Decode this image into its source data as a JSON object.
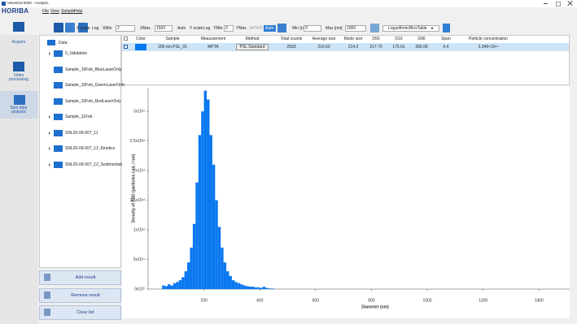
{
  "window": {
    "title": "ViewSizer3000 - Analysis"
  },
  "logo": "HORIBA",
  "menu": [
    "File",
    "View",
    "Sample",
    "Help"
  ],
  "toolbar": {
    "x_scale": "X scale",
    "x_log": "Log",
    "xmin_label": "XMin",
    "xmin": "2",
    "xmax_label": "XMax",
    "xmax": "1500",
    "x_auto": "Auto",
    "y_scale": "Y scale",
    "y_log": "Log",
    "ymin_label": "YMin",
    "ymin": "0",
    "ymax_label": "YMax",
    "ymax": "347543",
    "y_auto": "Auto",
    "min_label": "Min [nm]",
    "min": "0",
    "max_label": "Max [nm]",
    "max": "1000",
    "bins_table": "LogarithmicBinsTable"
  },
  "nav": [
    "Acquire",
    "Video processing",
    "Size data analysis"
  ],
  "tree": {
    "root": "Data",
    "items": [
      "0_Validation",
      "Sample_10Feb_BlueLaserOnly",
      "Sample_10Feb_GreenLaserOnly",
      "Sample_10Feb_RedLaserOnly",
      "Sample_11Feb",
      "SNL20-09-007_11",
      "SNL20-09-007_12_Kinetics",
      "SNL20-09-007_12_Sedimentation"
    ]
  },
  "buttons": [
    "Add result",
    "Remove result",
    "Clear list"
  ],
  "table": {
    "headers": [
      "Color",
      "Sample",
      "Measurement",
      "Method",
      "Total counts",
      "Average size",
      "Mode size",
      "D50",
      "D10",
      "D90",
      "Span",
      "Particle concentration"
    ],
    "rows": [
      [
        "200 nm PSL_01",
        "MPTA",
        "PSL Standard",
        "2933",
        "219.63",
        "214.3",
        "217.79",
        "175.61",
        "282.09",
        "0.4",
        "2.346×10¹⁴"
      ]
    ]
  },
  "chart_data": {
    "type": "histogram",
    "x_label": "Diameter (nm)",
    "y_label": "Density of PSD (particles / mL / nm)",
    "color": "#0a78f0",
    "bins": [
      50,
      60,
      70,
      80,
      90,
      100,
      110,
      120,
      130,
      140,
      150,
      160,
      170,
      180,
      190,
      200,
      210,
      220,
      230,
      240,
      250,
      260,
      270,
      280,
      290,
      300,
      310,
      320,
      330,
      340,
      350,
      360,
      370,
      380,
      390,
      400,
      410,
      420,
      430,
      440,
      450
    ],
    "values": [
      60000000000.0,
      50000000000.0,
      80000000000.0,
      60000000000.0,
      100000000000.0,
      120000000000.0,
      150000000000.0,
      200000000000.0,
      300000000000.0,
      450000000000.0,
      700000000000.0,
      1100000000000.0,
      1800000000000.0,
      2600000000000.0,
      3000000000000.0,
      3350000000000.0,
      3200000000000.0,
      2600000000000.0,
      2100000000000.0,
      1500000000000.0,
      1050000000000.0,
      700000000000.0,
      450000000000.0,
      300000000000.0,
      220000000000.0,
      150000000000.0,
      120000000000.0,
      100000000000.0,
      80000000000.0,
      60000000000.0,
      50000000000.0,
      40000000000.0,
      40000000000.0,
      30000000000.0,
      30000000000.0,
      20000000000.0,
      40000000000.0,
      20000000000.0,
      10000000000.0,
      10000000000.0
    ],
    "xlim": [
      0,
      1510
    ],
    "xticks": [
      200,
      400,
      600,
      800,
      1000,
      1200,
      1400
    ],
    "ylim": [
      0,
      3400000000000.0
    ],
    "yticks": [
      {
        "value": 0,
        "label": "0x10⁰"
      },
      {
        "value": 500000000000.0,
        "label": "5x10¹¹"
      },
      {
        "value": 1000000000000.0,
        "label": "1x10¹²"
      },
      {
        "value": 1500000000000.0,
        "label": "1.5x10¹²"
      },
      {
        "value": 2000000000000.0,
        "label": "2x10¹²"
      },
      {
        "value": 2500000000000.0,
        "label": "2.5x10¹²"
      },
      {
        "value": 3000000000000.0,
        "label": "3x10¹²"
      }
    ]
  }
}
